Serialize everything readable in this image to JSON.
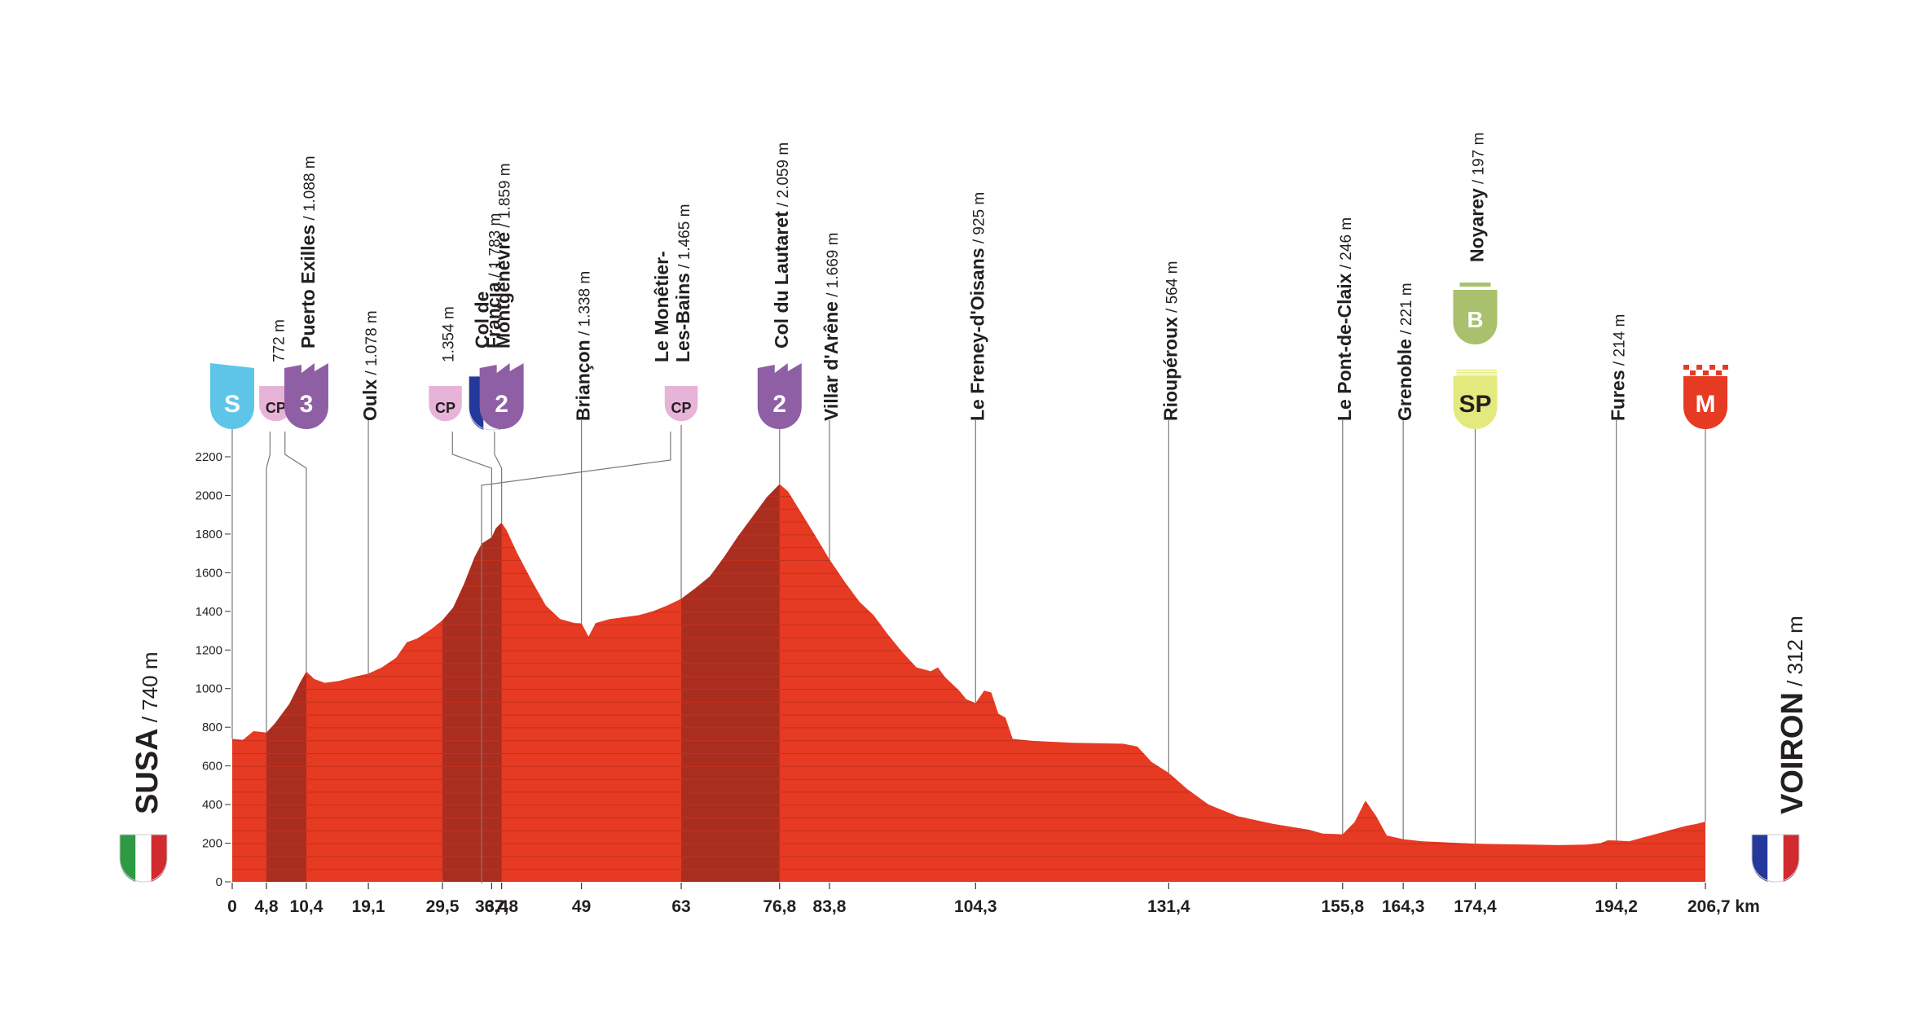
{
  "chart_data": {
    "type": "area",
    "title": "",
    "xlabel": "",
    "ylabel": "",
    "x_unit": "km",
    "xlim": [
      0,
      206.7
    ],
    "ylim": [
      0,
      2200
    ],
    "y_ticks": [
      0,
      200,
      400,
      600,
      800,
      1000,
      1200,
      1400,
      1600,
      1800,
      2000,
      2200
    ],
    "x_ticks": [
      {
        "v": 0,
        "label": "0"
      },
      {
        "v": 4.8,
        "label": "4,8"
      },
      {
        "v": 10.4,
        "label": "10,4"
      },
      {
        "v": 19.1,
        "label": "19,1"
      },
      {
        "v": 29.5,
        "label": "29,5"
      },
      {
        "v": 36.4,
        "label": "36,4"
      },
      {
        "v": 37.8,
        "label": "37,8"
      },
      {
        "v": 49,
        "label": "49"
      },
      {
        "v": 63,
        "label": "63"
      },
      {
        "v": 76.8,
        "label": "76,8"
      },
      {
        "v": 83.8,
        "label": "83,8"
      },
      {
        "v": 104.3,
        "label": "104,3"
      },
      {
        "v": 131.4,
        "label": "131,4"
      },
      {
        "v": 155.8,
        "label": "155,8"
      },
      {
        "v": 164.3,
        "label": "164,3"
      },
      {
        "v": 174.4,
        "label": "174,4"
      },
      {
        "v": 194.2,
        "label": "194,2"
      },
      {
        "v": 206.7,
        "label": "206,7 km"
      }
    ],
    "profile": [
      [
        0,
        740
      ],
      [
        1.5,
        735
      ],
      [
        3,
        780
      ],
      [
        4.8,
        772
      ],
      [
        6,
        820
      ],
      [
        8,
        920
      ],
      [
        9.5,
        1030
      ],
      [
        10.4,
        1088
      ],
      [
        11.5,
        1050
      ],
      [
        13,
        1030
      ],
      [
        15,
        1040
      ],
      [
        17,
        1060
      ],
      [
        19.1,
        1078
      ],
      [
        21,
        1110
      ],
      [
        23,
        1160
      ],
      [
        24.5,
        1240
      ],
      [
        26,
        1260
      ],
      [
        28,
        1310
      ],
      [
        29.5,
        1354
      ],
      [
        31,
        1420
      ],
      [
        32.5,
        1540
      ],
      [
        34,
        1680
      ],
      [
        35,
        1750
      ],
      [
        36.4,
        1783
      ],
      [
        37,
        1830
      ],
      [
        37.8,
        1859
      ],
      [
        38.5,
        1820
      ],
      [
        40,
        1700
      ],
      [
        42,
        1560
      ],
      [
        44,
        1430
      ],
      [
        46,
        1360
      ],
      [
        48,
        1340
      ],
      [
        49,
        1338
      ],
      [
        50,
        1270
      ],
      [
        51,
        1340
      ],
      [
        53,
        1360
      ],
      [
        55,
        1370
      ],
      [
        57,
        1380
      ],
      [
        59,
        1400
      ],
      [
        61,
        1430
      ],
      [
        63,
        1465
      ],
      [
        65,
        1520
      ],
      [
        67,
        1580
      ],
      [
        69,
        1680
      ],
      [
        71,
        1790
      ],
      [
        73,
        1890
      ],
      [
        75,
        1990
      ],
      [
        76.8,
        2059
      ],
      [
        78,
        2020
      ],
      [
        80,
        1900
      ],
      [
        82,
        1780
      ],
      [
        83.8,
        1669
      ],
      [
        86,
        1550
      ],
      [
        88,
        1450
      ],
      [
        90,
        1380
      ],
      [
        92,
        1280
      ],
      [
        94,
        1190
      ],
      [
        96,
        1110
      ],
      [
        98,
        1090
      ],
      [
        99,
        1110
      ],
      [
        100,
        1060
      ],
      [
        102,
        990
      ],
      [
        103,
        945
      ],
      [
        104.3,
        925
      ],
      [
        105.5,
        990
      ],
      [
        106.5,
        980
      ],
      [
        107.5,
        870
      ],
      [
        108.5,
        850
      ],
      [
        109.5,
        740
      ],
      [
        112,
        730
      ],
      [
        118,
        720
      ],
      [
        125,
        715
      ],
      [
        127,
        700
      ],
      [
        129,
        620
      ],
      [
        131.4,
        564
      ],
      [
        134,
        480
      ],
      [
        137,
        400
      ],
      [
        141,
        340
      ],
      [
        146,
        300
      ],
      [
        151,
        270
      ],
      [
        153,
        250
      ],
      [
        155.8,
        246
      ],
      [
        157.5,
        310
      ],
      [
        159,
        420
      ],
      [
        160.5,
        340
      ],
      [
        162,
        240
      ],
      [
        164.3,
        221
      ],
      [
        167,
        210
      ],
      [
        170,
        205
      ],
      [
        174.4,
        197
      ],
      [
        178,
        195
      ],
      [
        182,
        193
      ],
      [
        186,
        190
      ],
      [
        190,
        193
      ],
      [
        192,
        200
      ],
      [
        193,
        215
      ],
      [
        194.2,
        214
      ],
      [
        196,
        210
      ],
      [
        198,
        230
      ],
      [
        200,
        250
      ],
      [
        202,
        270
      ],
      [
        204,
        290
      ],
      [
        205.5,
        300
      ],
      [
        206.7,
        312
      ]
    ],
    "climbs_km": [
      [
        4.8,
        10.4
      ],
      [
        29.5,
        37.8
      ],
      [
        63,
        76.8
      ]
    ],
    "start": {
      "name": "SUSA",
      "alt": "/ 740 m",
      "flag": "Italy"
    },
    "finish": {
      "name": "VOIRON",
      "alt": "/ 312 m",
      "flag": "France"
    },
    "points": [
      {
        "km": 0,
        "badge": "S",
        "badge_color": "#5ec5e9",
        "badge_shape": "start"
      },
      {
        "km": 4.8,
        "name": "",
        "alt": "772 m",
        "badge": "CP",
        "badge_color": "#e7b3d8",
        "badge_shape": "cp"
      },
      {
        "km": 10.4,
        "name": "Puerto Exilles",
        "alt": "/ 1.088 m",
        "badge": "3",
        "badge_color": "#8e5fa5",
        "badge_shape": "climb"
      },
      {
        "km": 19.1,
        "name": "Oulx",
        "alt": "/ 1.078 m"
      },
      {
        "km": 29.5,
        "name": "",
        "alt": "1.354 m",
        "badge": "CP",
        "badge_color": "#e7b3d8",
        "badge_shape": "cp"
      },
      {
        "km": 36.4,
        "name": "Francia",
        "alt": "/ 1.783 m",
        "badge": "",
        "badge_color": "#c9282d",
        "badge_shape": "flag-fr"
      },
      {
        "km": 37.8,
        "name": "Col de",
        "name2": "Montgenèvre",
        "alt": "/ 1.859 m",
        "badge": "2",
        "badge_color": "#8e5fa5",
        "badge_shape": "climb"
      },
      {
        "km": 49,
        "name": "Briançon",
        "alt": "/ 1.338 m"
      },
      {
        "km": 63,
        "name": "Le Monêtier-",
        "name2": "Les-Bains",
        "alt": "/ 1.465 m",
        "badge": "CP",
        "badge_color": "#e7b3d8",
        "badge_shape": "cp"
      },
      {
        "km": 76.8,
        "name": "Col du Lautaret",
        "alt": "/ 2.059 m",
        "badge": "2",
        "badge_color": "#8e5fa5",
        "badge_shape": "climb"
      },
      {
        "km": 83.8,
        "name": "Villar d'Arêne",
        "alt": "/ 1.669 m"
      },
      {
        "km": 104.3,
        "name": "Le Freney-d'Oisans",
        "alt": "/ 925 m"
      },
      {
        "km": 131.4,
        "name": "Rioupéroux",
        "alt": "/ 564 m"
      },
      {
        "km": 155.8,
        "name": "Le Pont-de-Claix",
        "alt": "/ 246 m"
      },
      {
        "km": 164.3,
        "name": "Grenoble",
        "alt": "/ 221 m"
      },
      {
        "km": 174.4,
        "name": "Noyarey",
        "alt": "/ 197 m",
        "badge": "SP",
        "badge_color": "#e4e97d",
        "badge_shape": "sprint",
        "badge2": "B",
        "badge2_color": "#a9c16c"
      },
      {
        "km": 194.2,
        "name": "Fures",
        "alt": "/ 214 m"
      },
      {
        "km": 206.7,
        "badge": "M",
        "badge_color": "#e63a23",
        "badge_shape": "finish"
      }
    ],
    "colors": {
      "area": "#e63a23",
      "climb": "#aa2e20",
      "stripe": "#c2311c",
      "line": "#7a7a7a",
      "text": "#231f20"
    }
  }
}
